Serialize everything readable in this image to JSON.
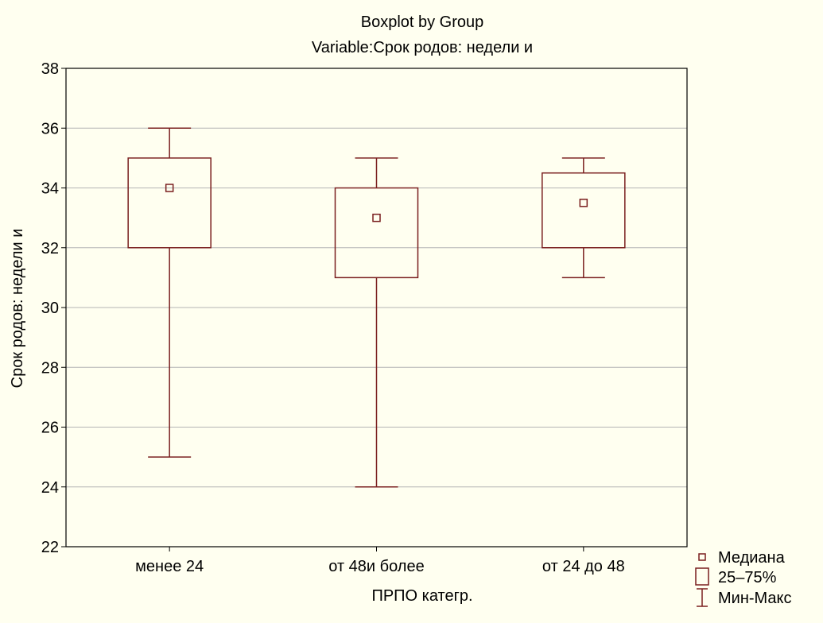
{
  "chart_data": {
    "type": "boxplot",
    "title": "Boxplot by Group",
    "subtitle": "Variable:Срок родов: недели и",
    "xlabel": "ПРПО категр.",
    "ylabel": "Срок родов: недели и",
    "ylim": [
      22,
      38
    ],
    "yticks": [
      22,
      24,
      26,
      28,
      30,
      32,
      34,
      36,
      38
    ],
    "grid": true,
    "categories": [
      "менее 24",
      "от 48и более",
      "от 24 до 48"
    ],
    "groups": [
      {
        "label": "менее 24",
        "median": 34,
        "q1": 32,
        "q3": 35,
        "min": 25,
        "max": 36
      },
      {
        "label": "от 48и более",
        "median": 33,
        "q1": 31,
        "q3": 34,
        "min": 24,
        "max": 35
      },
      {
        "label": "от 24 до 48",
        "median": 33.5,
        "q1": 32,
        "q3": 34.5,
        "min": 31,
        "max": 35
      }
    ],
    "legend": {
      "position": "bottom-right",
      "items": [
        {
          "label": "Медиана",
          "symbol": "small-square"
        },
        {
          "label": "25–75%",
          "symbol": "box"
        },
        {
          "label": "Мин-Макс",
          "symbol": "whisker"
        }
      ]
    },
    "colors": {
      "series": "#7a1f1f",
      "grid": "#b4b4b4",
      "axis": "#000000",
      "background": "#fffff0"
    }
  }
}
